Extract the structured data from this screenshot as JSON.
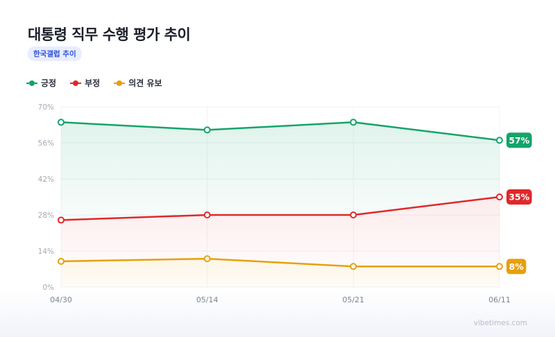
{
  "header": {
    "title": "대통령 직무 수행 평가 추이",
    "source_badge": "한국갤럽 추이"
  },
  "footer": {
    "credit": "vibetimes.com"
  },
  "chart_data": {
    "type": "line",
    "categories": [
      "04/30",
      "05/14",
      "05/21",
      "06/11"
    ],
    "y_ticks": [
      "0%",
      "14%",
      "28%",
      "42%",
      "56%",
      "70%"
    ],
    "ylim": [
      0,
      70
    ],
    "grid": true,
    "legend_position": "top-left",
    "series": [
      {
        "name": "긍정",
        "values": [
          64,
          61,
          64,
          57
        ],
        "color": "#13a46a",
        "end_label": "57%"
      },
      {
        "name": "부정",
        "values": [
          26,
          28,
          28,
          35
        ],
        "color": "#e0282a",
        "end_label": "35%"
      },
      {
        "name": "의견 유보",
        "values": [
          10,
          11,
          8,
          8
        ],
        "color": "#e6a00d",
        "end_label": "8%"
      }
    ]
  }
}
